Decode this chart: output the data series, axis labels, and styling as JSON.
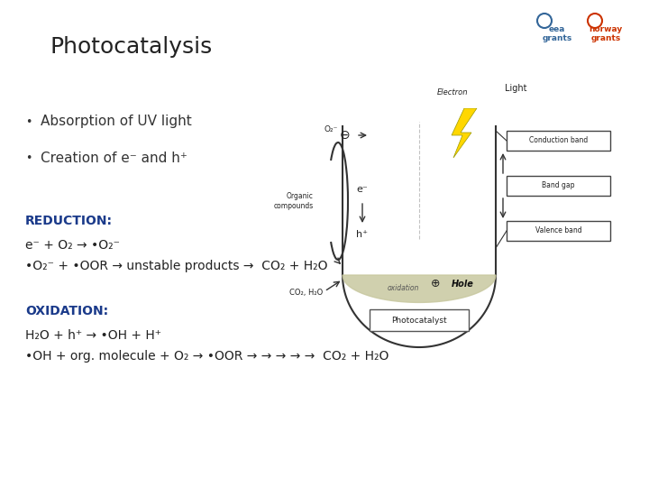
{
  "title": "Photocatalysis",
  "background_color": "#ffffff",
  "title_color": "#222222",
  "bullet_color": "#333333",
  "reduction_color": "#1a3a8a",
  "oxidation_color": "#1a3a8a",
  "body_color": "#222222",
  "diagram_color": "#333333",
  "band_fill": "#ffffff",
  "hole_fill": "#c8c8a0",
  "lightning_color": "#FFD700",
  "bullet1": "Absorption of UV light",
  "bullet2": "Creation of e⁻ and h⁺",
  "reduction_label": "REDUCTION:",
  "red_line1": "e⁻ + O₂ → •O₂⁻",
  "red_line2": "•O₂⁻ + •OOR → unstable products →  CO₂ + H₂O",
  "oxidation_label": "OXIDATION:",
  "ox_line1": "H₂O + h⁺ → •OH + H⁺",
  "ox_line2": "•OH + org. molecule + O₂ → •OOR → → → → →  CO₂ + H₂O"
}
